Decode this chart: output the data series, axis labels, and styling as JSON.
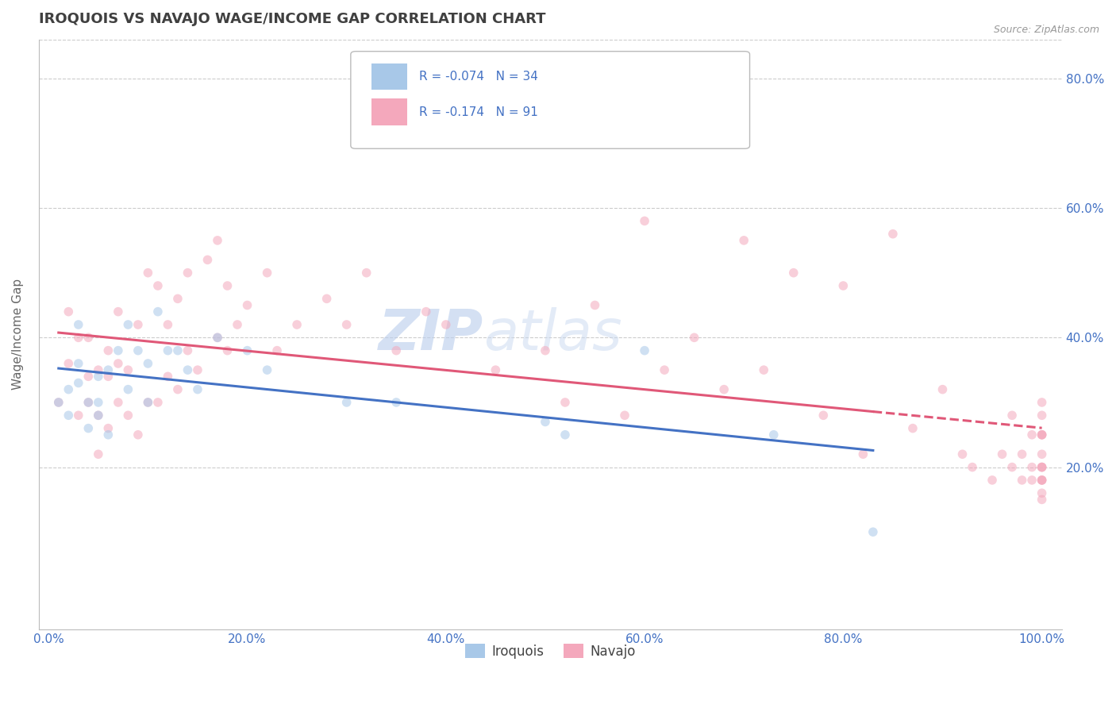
{
  "title": "IROQUOIS VS NAVAJO WAGE/INCOME GAP CORRELATION CHART",
  "source_text": "Source: ZipAtlas.com",
  "ylabel": "Wage/Income Gap",
  "xlim": [
    -0.01,
    1.02
  ],
  "ylim": [
    -0.05,
    0.86
  ],
  "x_ticks": [
    0.0,
    0.2,
    0.4,
    0.6,
    0.8,
    1.0
  ],
  "x_tick_labels": [
    "0.0%",
    "20.0%",
    "40.0%",
    "60.0%",
    "80.0%",
    "100.0%"
  ],
  "y_ticks": [
    0.2,
    0.4,
    0.6,
    0.8
  ],
  "y_tick_labels": [
    "20.0%",
    "40.0%",
    "60.0%",
    "80.0%"
  ],
  "iroquois_color": "#a8c8e8",
  "navajo_color": "#f4a8bc",
  "iroquois_line_color": "#4472c4",
  "navajo_line_color": "#e05878",
  "iroquois_x": [
    0.01,
    0.02,
    0.02,
    0.03,
    0.03,
    0.03,
    0.04,
    0.04,
    0.05,
    0.05,
    0.05,
    0.06,
    0.06,
    0.07,
    0.08,
    0.08,
    0.09,
    0.1,
    0.1,
    0.11,
    0.12,
    0.13,
    0.14,
    0.15,
    0.17,
    0.2,
    0.22,
    0.3,
    0.35,
    0.5,
    0.52,
    0.6,
    0.73,
    0.83
  ],
  "iroquois_y": [
    0.3,
    0.32,
    0.28,
    0.33,
    0.36,
    0.42,
    0.3,
    0.26,
    0.28,
    0.3,
    0.34,
    0.25,
    0.35,
    0.38,
    0.32,
    0.42,
    0.38,
    0.36,
    0.3,
    0.44,
    0.38,
    0.38,
    0.35,
    0.32,
    0.4,
    0.38,
    0.35,
    0.3,
    0.3,
    0.27,
    0.25,
    0.38,
    0.25,
    0.1
  ],
  "navajo_x": [
    0.01,
    0.02,
    0.02,
    0.03,
    0.03,
    0.04,
    0.04,
    0.04,
    0.05,
    0.05,
    0.05,
    0.06,
    0.06,
    0.06,
    0.07,
    0.07,
    0.07,
    0.08,
    0.08,
    0.09,
    0.09,
    0.1,
    0.1,
    0.11,
    0.11,
    0.12,
    0.12,
    0.13,
    0.13,
    0.14,
    0.14,
    0.15,
    0.16,
    0.17,
    0.17,
    0.18,
    0.18,
    0.19,
    0.2,
    0.22,
    0.23,
    0.25,
    0.28,
    0.3,
    0.32,
    0.35,
    0.38,
    0.4,
    0.45,
    0.5,
    0.52,
    0.55,
    0.58,
    0.6,
    0.62,
    0.65,
    0.68,
    0.7,
    0.72,
    0.75,
    0.78,
    0.8,
    0.82,
    0.85,
    0.87,
    0.9,
    0.92,
    0.93,
    0.95,
    0.96,
    0.97,
    0.97,
    0.98,
    0.98,
    0.99,
    0.99,
    0.99,
    1.0,
    1.0,
    1.0,
    1.0,
    1.0,
    1.0,
    1.0,
    1.0,
    1.0,
    1.0,
    1.0,
    1.0,
    1.0,
    1.0
  ],
  "navajo_y": [
    0.3,
    0.36,
    0.44,
    0.28,
    0.4,
    0.3,
    0.34,
    0.4,
    0.22,
    0.28,
    0.35,
    0.26,
    0.34,
    0.38,
    0.3,
    0.36,
    0.44,
    0.28,
    0.35,
    0.25,
    0.42,
    0.3,
    0.5,
    0.3,
    0.48,
    0.34,
    0.42,
    0.32,
    0.46,
    0.38,
    0.5,
    0.35,
    0.52,
    0.4,
    0.55,
    0.38,
    0.48,
    0.42,
    0.45,
    0.5,
    0.38,
    0.42,
    0.46,
    0.42,
    0.5,
    0.38,
    0.44,
    0.42,
    0.35,
    0.38,
    0.3,
    0.45,
    0.28,
    0.58,
    0.35,
    0.4,
    0.32,
    0.55,
    0.35,
    0.5,
    0.28,
    0.48,
    0.22,
    0.56,
    0.26,
    0.32,
    0.22,
    0.2,
    0.18,
    0.22,
    0.2,
    0.28,
    0.18,
    0.22,
    0.25,
    0.2,
    0.18,
    0.28,
    0.22,
    0.18,
    0.25,
    0.2,
    0.16,
    0.25,
    0.3,
    0.2,
    0.18,
    0.25,
    0.15,
    0.2,
    0.18
  ],
  "background_color": "#ffffff",
  "grid_color": "#cccccc",
  "title_color": "#404040",
  "axis_label_color": "#666666",
  "tick_label_color": "#4472c4",
  "marker_size": 70,
  "marker_alpha": 0.55,
  "legend_box_color_1": "#a8c8e8",
  "legend_box_color_2": "#f4a8bc",
  "legend_value_color": "#4472c4",
  "zip_watermark_color": "#c0d4ee",
  "atlas_watermark_color": "#c8d8ee"
}
